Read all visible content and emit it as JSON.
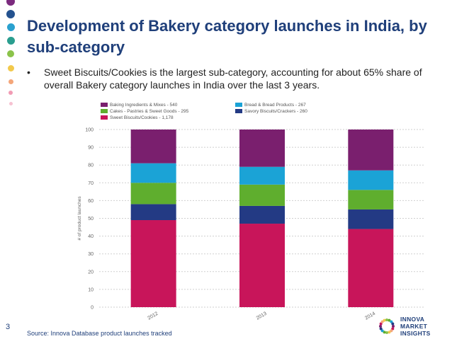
{
  "slide": {
    "title": "Development of Bakery category launches in India, by sub-category",
    "bullet_mark": "•",
    "bullet": "Sweet Biscuits/Cookies is the largest sub-category, accounting for about 65% share of overall Bakery category launches in India over the last 3 years.",
    "page_number": "3",
    "source": "Source: Innova Database product launches tracked",
    "logo_lines": [
      "INNOVA",
      "MARKET",
      "INSIGHTS"
    ]
  },
  "colors": {
    "title": "#1f3f7a",
    "dots": [
      "#7b2a7e",
      "#24528f",
      "#2aa1cf",
      "#2a9e8f",
      "#8bc34a",
      "#f2c94c",
      "#f4a67a",
      "#f19bb4",
      "#f6c1d1"
    ]
  },
  "chart_data": {
    "type": "bar",
    "stacked": true,
    "categories": [
      "2012",
      "2013",
      "2014"
    ],
    "ylabel": "# of product launches",
    "ylim": [
      0,
      100
    ],
    "yticks": [
      0,
      10,
      20,
      30,
      40,
      50,
      60,
      70,
      80,
      90,
      100
    ],
    "legend_position": "top",
    "series": [
      {
        "name": "Sweet Biscuits/Cookies - 1,178",
        "color": "#c8155a",
        "values": [
          49,
          47,
          44
        ]
      },
      {
        "name": "Savory Biscuits/Crackers - 260",
        "color": "#233a84",
        "values": [
          9,
          10,
          11
        ]
      },
      {
        "name": "Cakes - Pastries & Sweet Goods - 295",
        "color": "#5fae2e",
        "values": [
          12,
          12,
          11
        ]
      },
      {
        "name": "Bread & Bread Products - 267",
        "color": "#1ba3d6",
        "values": [
          11,
          10,
          11
        ]
      },
      {
        "name": "Baking Ingredients & Mixes - 540",
        "color": "#7a1f6e",
        "values": [
          19,
          21,
          23
        ]
      }
    ]
  }
}
